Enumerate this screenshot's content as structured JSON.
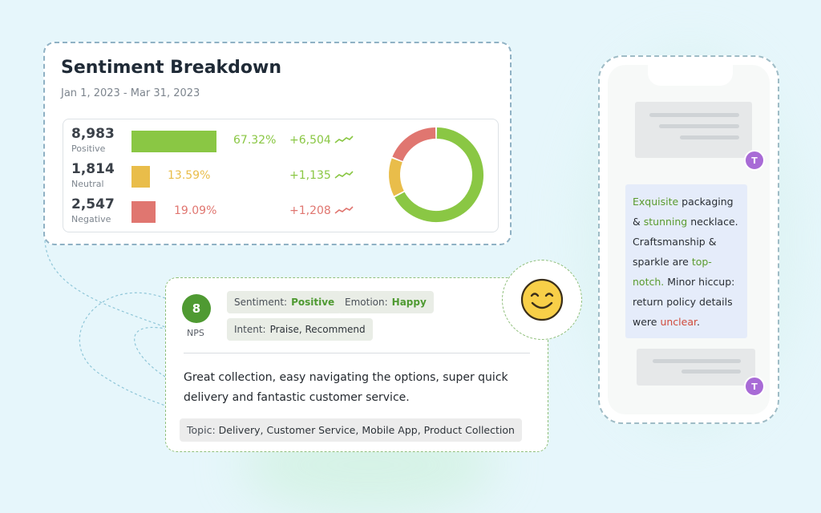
{
  "colors": {
    "positive": "#8ac744",
    "neutral": "#e9bd4a",
    "negative": "#e07670",
    "nps_green": "#4f9a32",
    "avatar_purple": "#a86bd6"
  },
  "sentiment": {
    "title": "Sentiment Breakdown",
    "date_range": "Jan 1, 2023 - Mar 31, 2023",
    "rows": [
      {
        "count": "8,983",
        "label": "Positive",
        "percent": "67.32%",
        "delta": "+6,504"
      },
      {
        "count": "1,814",
        "label": "Neutral",
        "percent": "13.59%",
        "delta": "+1,135"
      },
      {
        "count": "2,547",
        "label": "Negative",
        "percent": "19.09%",
        "delta": "+1,208"
      }
    ]
  },
  "chart_data": {
    "type": "pie",
    "categories": [
      "Positive",
      "Neutral",
      "Negative"
    ],
    "values": [
      67.32,
      13.59,
      19.09
    ],
    "title": "Sentiment Breakdown"
  },
  "review": {
    "nps_value": "8",
    "nps_label": "NPS",
    "chips": {
      "sentiment_key": "Sentiment:",
      "sentiment_value": "Positive",
      "emotion_key": "Emotion:",
      "emotion_value": "Happy",
      "intent_key": "Intent:",
      "intent_value": "Praise, Recommend"
    },
    "text": "Great collection, easy navigating the options, super quick delivery and fantastic customer service.",
    "topic_key": "Topic:",
    "topic_value": "Delivery, Customer Service, Mobile App, Product Collection"
  },
  "phone": {
    "avatar_initial": "T",
    "message": {
      "w1": "Exquisite",
      "t1": " packaging & ",
      "w2": "stunning",
      "t2": " necklace. Craftsmanship & sparkle are ",
      "w3": "top-notch.",
      "t3": "  Minor hiccup: return policy details were ",
      "w4": "unclear",
      "t4": "."
    }
  }
}
